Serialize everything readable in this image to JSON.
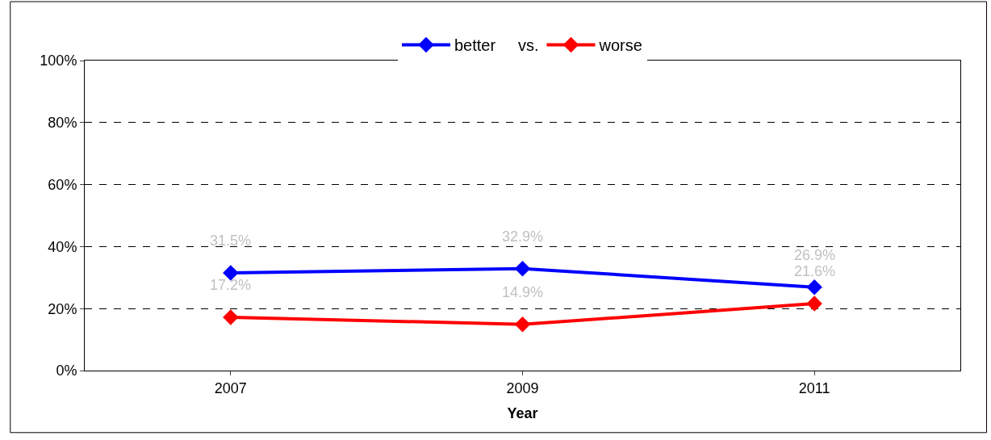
{
  "chart_data": {
    "type": "line",
    "xlabel": "Year",
    "categories": [
      "2007",
      "2009",
      "2011"
    ],
    "series": [
      {
        "name": "better     vs.",
        "color": "#0000ff",
        "values": [
          31.5,
          32.9,
          26.9
        ],
        "value_labels": [
          "31.5%",
          "32.9%",
          "26.9%"
        ]
      },
      {
        "name": "worse",
        "color": "#ff0000",
        "values": [
          17.2,
          14.9,
          21.6
        ],
        "value_labels": [
          "17.2%",
          "14.9%",
          "21.6%"
        ]
      }
    ],
    "ylim": [
      0,
      100
    ],
    "yticks": [
      {
        "value": 0,
        "label": "0%"
      },
      {
        "value": 20,
        "label": "20%"
      },
      {
        "value": 40,
        "label": "40%"
      },
      {
        "value": 60,
        "label": "60%"
      },
      {
        "value": 80,
        "label": "80%"
      },
      {
        "value": 100,
        "label": "100%"
      }
    ],
    "grid": "y",
    "legend": "top",
    "marker": "diamond",
    "line_style": "solid"
  }
}
